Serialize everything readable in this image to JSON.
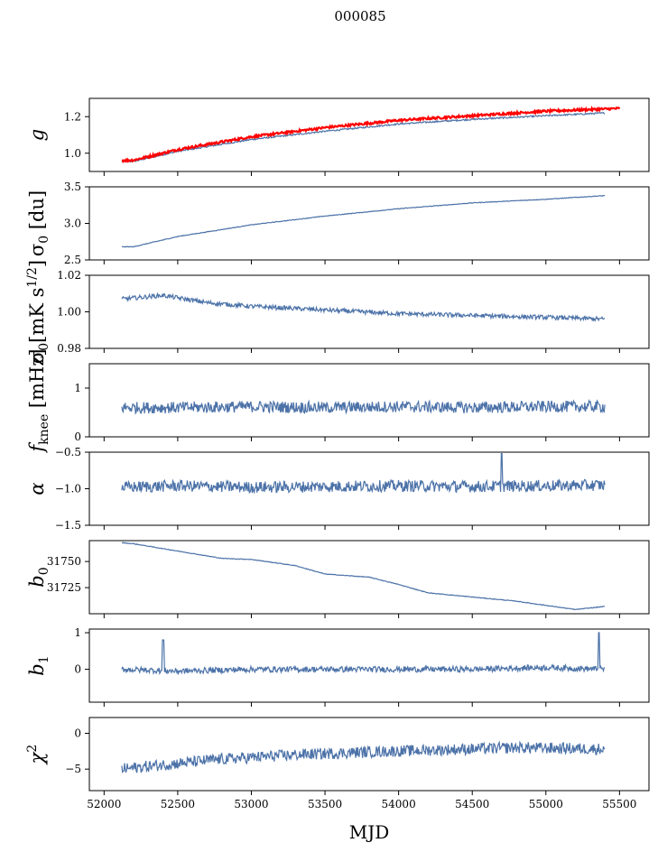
{
  "title": "000085",
  "colors": {
    "series": "#4c72a8",
    "highlight": "#ff0000",
    "axis": "#000000"
  },
  "chart_data": {
    "type": "line",
    "xlabel": "MJD",
    "xlim": [
      51900,
      55700
    ],
    "xticks": [
      52000,
      52500,
      53000,
      53500,
      54000,
      54500,
      55000,
      55500
    ],
    "xtick_labels": [
      "52000",
      "52500",
      "53000",
      "53500",
      "54000",
      "54500",
      "55000",
      "55500"
    ],
    "panels": [
      {
        "id": "g",
        "ylabel": "g",
        "ylim": [
          0.9,
          1.3
        ],
        "yticks": [
          1.0,
          1.2
        ],
        "ytick_labels": [
          "1.0",
          "1.2"
        ],
        "series": [
          {
            "name": "g",
            "color": "#4c72a8",
            "noise": 0.004,
            "x": [
              52120,
              52200,
              52500,
              53000,
              53500,
              54000,
              54500,
              55000,
              55400
            ],
            "y": [
              0.955,
              0.955,
              1.01,
              1.075,
              1.12,
              1.16,
              1.185,
              1.205,
              1.22
            ]
          },
          {
            "name": "g (red)",
            "color": "#ff0000",
            "noise": 0.006,
            "width": 2.2,
            "x": [
              52120,
              52200,
              52500,
              53000,
              53500,
              54000,
              54500,
              55000,
              55500
            ],
            "y": [
              0.96,
              0.962,
              1.02,
              1.09,
              1.14,
              1.18,
              1.205,
              1.23,
              1.245
            ]
          }
        ]
      },
      {
        "id": "sigma0_du",
        "ylabel": "σ0 [du]",
        "ylim": [
          2.5,
          3.5
        ],
        "yticks": [
          2.5,
          3.0,
          3.5
        ],
        "ytick_labels": [
          "2.5",
          "3.0",
          "3.5"
        ],
        "series": [
          {
            "name": "sigma0",
            "color": "#4c72a8",
            "noise": 0.004,
            "x": [
              52120,
              52200,
              52500,
              53000,
              53500,
              54000,
              54500,
              55000,
              55400
            ],
            "y": [
              2.68,
              2.68,
              2.82,
              2.98,
              3.1,
              3.2,
              3.28,
              3.33,
              3.38
            ]
          }
        ]
      },
      {
        "id": "sigma0_mk",
        "ylabel": "σ0[mK s1/2]",
        "ylim": [
          0.98,
          1.02
        ],
        "yticks": [
          0.98,
          1.0,
          1.02
        ],
        "ytick_labels": [
          "0.98",
          "1.00",
          "1.02"
        ],
        "series": [
          {
            "name": "sigma0 calibrated",
            "color": "#4c72a8",
            "noise": 0.0012,
            "x": [
              52120,
              52400,
              52700,
              53000,
              53500,
              54000,
              54500,
              55000,
              55400
            ],
            "y": [
              1.007,
              1.009,
              1.005,
              1.003,
              1.001,
              0.999,
              0.998,
              0.997,
              0.996
            ]
          }
        ]
      },
      {
        "id": "fknee",
        "ylabel": "fknee [mHz]",
        "ylim": [
          0,
          1.5
        ],
        "yticks": [
          0,
          1
        ],
        "ytick_labels": [
          "0",
          "1"
        ],
        "series": [
          {
            "name": "fknee",
            "color": "#4c72a8",
            "noise": 0.12,
            "x": [
              52120,
              52500,
              53000,
              53500,
              54000,
              54500,
              55000,
              55400
            ],
            "y": [
              0.6,
              0.6,
              0.62,
              0.6,
              0.62,
              0.6,
              0.62,
              0.62
            ]
          }
        ]
      },
      {
        "id": "alpha",
        "ylabel": "α",
        "ylim": [
          -1.5,
          -0.5
        ],
        "yticks": [
          -1.5,
          -1.0,
          -0.5
        ],
        "ytick_labels": [
          "−1.5",
          "−1.0",
          "−0.5"
        ],
        "series": [
          {
            "name": "alpha",
            "color": "#4c72a8",
            "noise": 0.08,
            "x": [
              52120,
              52500,
              53000,
              53500,
              54000,
              54500,
              55000,
              55400
            ],
            "y": [
              -0.98,
              -0.96,
              -0.98,
              -0.97,
              -0.96,
              -0.97,
              -0.96,
              -0.95
            ]
          }
        ]
      },
      {
        "id": "b0",
        "ylabel": "b0",
        "ylim": [
          31700,
          31770
        ],
        "yticks": [
          31725,
          31750
        ],
        "ytick_labels": [
          "31725",
          "31750"
        ],
        "series": [
          {
            "name": "b0",
            "color": "#4c72a8",
            "noise": 0.3,
            "x": [
              52120,
              52200,
              52500,
              52800,
              53000,
              53300,
              53500,
              53800,
              54000,
              54200,
              54500,
              54800,
              55000,
              55200,
              55400
            ],
            "y": [
              31768,
              31767,
              31760,
              31753,
              31752,
              31746,
              31738,
              31735,
              31728,
              31720,
              31716,
              31712,
              31708,
              31704,
              31707
            ]
          }
        ]
      },
      {
        "id": "b1",
        "ylabel": "b1",
        "ylim": [
          -0.9,
          1.1
        ],
        "yticks": [
          0,
          1
        ],
        "ytick_labels": [
          "0",
          "1"
        ],
        "series": [
          {
            "name": "b1",
            "color": "#4c72a8",
            "noise": 0.08,
            "x": [
              52120,
              52500,
              53000,
              53500,
              54000,
              54500,
              55000,
              55400
            ],
            "y": [
              0.0,
              -0.05,
              0.0,
              0.0,
              0.0,
              0.0,
              0.05,
              0.0
            ]
          }
        ]
      },
      {
        "id": "chi2",
        "ylabel": "χ2",
        "ylim": [
          -8,
          2.2
        ],
        "yticks": [
          -5,
          0
        ],
        "ytick_labels": [
          "−5",
          "0"
        ],
        "series": [
          {
            "name": "chi2",
            "color": "#4c72a8",
            "noise": 0.8,
            "x": [
              52120,
              52300,
              52800,
              53300,
              53800,
              54300,
              54800,
              55400
            ],
            "y": [
              -5.0,
              -4.6,
              -3.6,
              -3.0,
              -2.6,
              -2.3,
              -2.0,
              -2.2
            ]
          }
        ]
      }
    ]
  }
}
